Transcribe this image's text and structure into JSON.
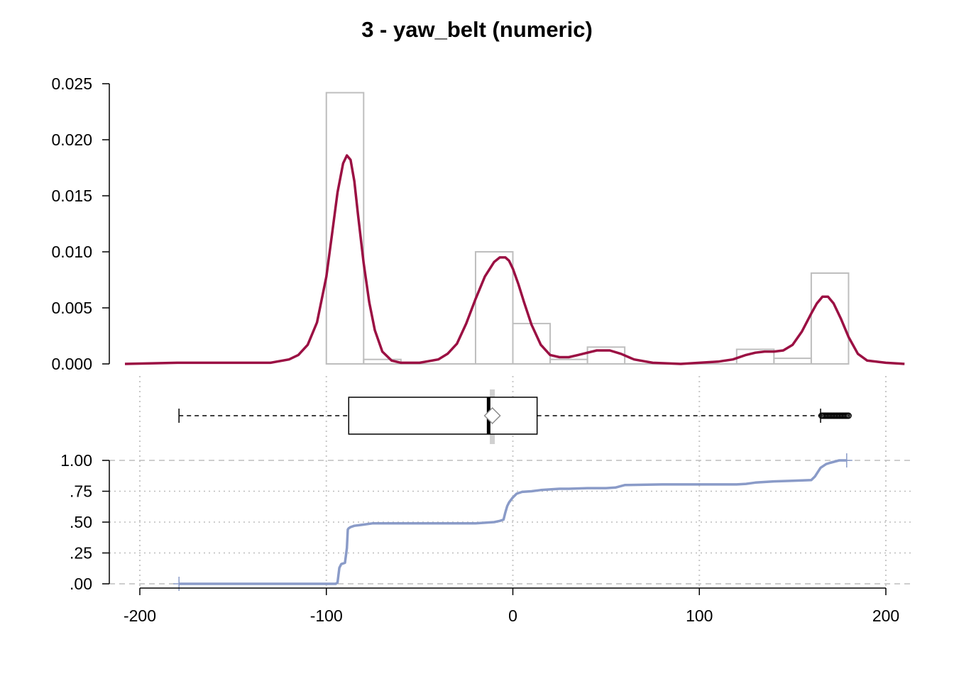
{
  "chart_data": {
    "type": "histogram-density-boxplot-ecdf",
    "title": "3 - yaw_belt (numeric)",
    "xlim": [
      -210,
      210
    ],
    "x_ticks": [
      "-200",
      "-100",
      "0",
      "100",
      "200"
    ],
    "x_tick_values": [
      -200,
      -100,
      0,
      100,
      200
    ],
    "density_panel": {
      "ylim": [
        0,
        0.025
      ],
      "y_ticks": [
        "0.000",
        "0.005",
        "0.010",
        "0.015",
        "0.020",
        "0.025"
      ],
      "y_tick_values": [
        0,
        0.005,
        0.01,
        0.015,
        0.02,
        0.025
      ],
      "histogram": {
        "bins": [
          {
            "x0": -100,
            "x1": -80,
            "density": 0.0242
          },
          {
            "x0": -80,
            "x1": -60,
            "density": 0.0004
          },
          {
            "x0": -60,
            "x1": -40,
            "density": 0.0
          },
          {
            "x0": -40,
            "x1": -20,
            "density": 0.0
          },
          {
            "x0": -20,
            "x1": 0,
            "density": 0.01
          },
          {
            "x0": 0,
            "x1": 20,
            "density": 0.0036
          },
          {
            "x0": 20,
            "x1": 40,
            "density": 0.0004
          },
          {
            "x0": 40,
            "x1": 60,
            "density": 0.0015
          },
          {
            "x0": 60,
            "x1": 80,
            "density": 0.0
          },
          {
            "x0": 80,
            "x1": 100,
            "density": 0.0
          },
          {
            "x0": 100,
            "x1": 120,
            "density": 0.0
          },
          {
            "x0": 120,
            "x1": 140,
            "density": 0.0013
          },
          {
            "x0": 140,
            "x1": 160,
            "density": 0.0005
          },
          {
            "x0": 160,
            "x1": 180,
            "density": 0.0081
          }
        ],
        "color": "#bebebe"
      },
      "density": {
        "x": [
          -208,
          -180,
          -160,
          -140,
          -130,
          -120,
          -115,
          -110,
          -105,
          -100,
          -97,
          -94,
          -91,
          -89,
          -87,
          -85,
          -83,
          -80,
          -77,
          -74,
          -70,
          -65,
          -60,
          -50,
          -40,
          -35,
          -30,
          -25,
          -20,
          -15,
          -10,
          -7,
          -4,
          -2,
          0,
          3,
          6,
          10,
          15,
          20,
          25,
          30,
          35,
          40,
          45,
          52,
          58,
          65,
          75,
          90,
          110,
          118,
          125,
          130,
          135,
          140,
          145,
          150,
          155,
          160,
          163,
          166,
          169,
          172,
          176,
          180,
          185,
          190,
          200,
          210
        ],
        "y": [
          0,
          0.0001,
          0.0001,
          0.0001,
          0.0001,
          0.0004,
          0.0008,
          0.0017,
          0.0037,
          0.0078,
          0.0115,
          0.0153,
          0.0179,
          0.0186,
          0.0182,
          0.0163,
          0.0133,
          0.009,
          0.0055,
          0.003,
          0.0011,
          0.0003,
          0.0001,
          0.0001,
          0.0004,
          0.0009,
          0.0018,
          0.0036,
          0.0058,
          0.0078,
          0.0091,
          0.0095,
          0.0095,
          0.0092,
          0.0085,
          0.0071,
          0.0055,
          0.0035,
          0.0017,
          0.0008,
          0.0006,
          0.0006,
          0.0008,
          0.001,
          0.0012,
          0.0012,
          0.0009,
          0.0004,
          0.0001,
          0.0,
          0.0002,
          0.0004,
          0.0008,
          0.001,
          0.0011,
          0.0011,
          0.0012,
          0.0017,
          0.0029,
          0.0045,
          0.0054,
          0.006,
          0.006,
          0.0054,
          0.004,
          0.0024,
          0.0009,
          0.0003,
          0.0001,
          0
        ],
        "color": "#9b1043"
      }
    },
    "boxplot": {
      "whisker_low": -179,
      "q1": -88,
      "median": -13,
      "q3": 13,
      "whisker_high": 165,
      "mean": -11,
      "outliers": [
        165.5,
        166,
        166.5,
        167,
        167.5,
        168,
        168.5,
        169,
        169.5,
        170,
        170.5,
        171,
        171.5,
        172,
        172.5,
        173,
        173.5,
        174,
        174.5,
        175,
        175.5,
        176,
        176.5,
        177,
        177.5,
        178,
        178.5,
        179,
        179.5,
        180
      ]
    },
    "ecdf_panel": {
      "ylim": [
        0,
        1
      ],
      "y_ticks": [
        "1.00",
        ".75",
        ".50",
        ".25",
        ".00"
      ],
      "y_tick_values": [
        1,
        0.75,
        0.5,
        0.25,
        0
      ],
      "ecdf": {
        "x": [
          -179,
          -95,
          -94,
          -93,
          -92,
          -90,
          -89,
          -88.5,
          -88,
          -87,
          -85,
          -80,
          -75,
          -70,
          -65,
          -60,
          -40,
          -20,
          -10,
          -7,
          -5,
          -4,
          -3,
          -2,
          0,
          2,
          5,
          10,
          15,
          20,
          25,
          30,
          40,
          50,
          55,
          60,
          80,
          100,
          120,
          125,
          130,
          140,
          150,
          160,
          162,
          165,
          168,
          170,
          175,
          179
        ],
        "y": [
          0.0,
          0.0,
          0.01,
          0.13,
          0.16,
          0.17,
          0.29,
          0.44,
          0.45,
          0.46,
          0.47,
          0.48,
          0.49,
          0.49,
          0.49,
          0.49,
          0.49,
          0.49,
          0.5,
          0.51,
          0.52,
          0.58,
          0.63,
          0.66,
          0.7,
          0.73,
          0.745,
          0.75,
          0.76,
          0.765,
          0.77,
          0.77,
          0.775,
          0.775,
          0.78,
          0.8,
          0.805,
          0.805,
          0.805,
          0.81,
          0.82,
          0.83,
          0.835,
          0.84,
          0.87,
          0.94,
          0.97,
          0.98,
          1.0,
          1.0
        ],
        "color": "#8a9bc8"
      },
      "grid": true
    }
  }
}
